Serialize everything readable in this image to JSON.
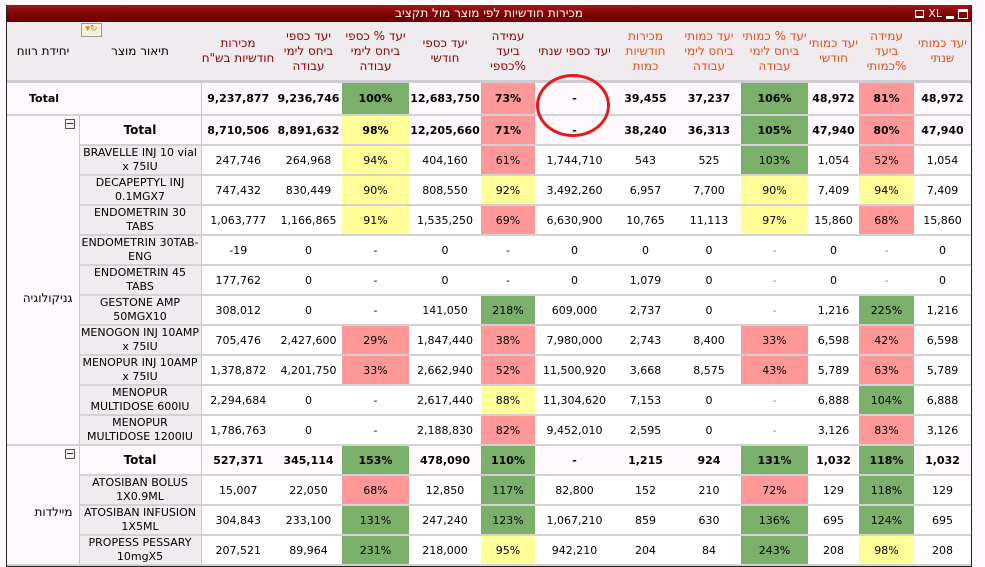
{
  "window": {
    "title": "מכירות חודשיות לפי מוצר מול תקציב",
    "icons": [
      "print-icon",
      "excel-export-icon",
      "minimize-icon",
      "maximize-icon"
    ],
    "excel_label": "XL"
  },
  "headers": {
    "profit_unit": "יחידת רווח",
    "product_desc": "תיאור מוצר",
    "monthly_sales_ils": "מכירות חודשיות בש\"ח",
    "money_target_workdays": "יעד כספי ביחס לימי עבודה",
    "money_target_pct_workdays": "יעד % כספי ביחס לימי עבודה",
    "monthly_money_target": "יעד כספי חודשי",
    "money_target_achieve_pct": "עמידה ביעד %כספי",
    "annual_money_target": "יעד כספי שנתי",
    "monthly_sales_qty": "מכירות חודשיות כמות",
    "qty_target_workdays": "יעד כמותי ביחס לימי עבודה",
    "qty_target_pct_workdays": "יעד % כמותי ביחס לימי עבודה",
    "monthly_qty_target": "יעד כמותי חודשי",
    "qty_target_achieve_pct": "עמידה ביעד %כמותי",
    "annual_qty_target": "יעד כמותי שנתי"
  },
  "grand_total": {
    "label": "Total",
    "values": [
      "9,237,877",
      "9,236,746",
      "100%",
      "12,683,750",
      "73%",
      "-",
      "39,455",
      "37,237",
      "106%",
      "48,972",
      "81%",
      "48,972"
    ]
  },
  "groups": [
    {
      "name": "גניקולוגיה",
      "total": {
        "label": "Total",
        "values": [
          "8,710,506",
          "8,891,632",
          "98%",
          "12,205,660",
          "71%",
          "-",
          "38,240",
          "36,313",
          "105%",
          "47,940",
          "80%",
          "47,940"
        ]
      },
      "rows": [
        {
          "product": "BRAVELLE INJ 10 vial x 75IU",
          "values": [
            "247,746",
            "264,968",
            "94%",
            "404,160",
            "61%",
            "1,744,710",
            "543",
            "525",
            "103%",
            "1,054",
            "52%",
            "1,054"
          ]
        },
        {
          "product": "DECAPEPTYL INJ 0.1MGX7",
          "values": [
            "747,432",
            "830,449",
            "90%",
            "808,550",
            "92%",
            "3,492,260",
            "6,957",
            "7,700",
            "90%",
            "7,409",
            "94%",
            "7,409"
          ]
        },
        {
          "product": "ENDOMETRIN 30 TABS",
          "values": [
            "1,063,777",
            "1,166,865",
            "91%",
            "1,535,250",
            "69%",
            "6,630,900",
            "10,765",
            "11,113",
            "97%",
            "15,860",
            "68%",
            "15,860"
          ]
        },
        {
          "product": "ENDOMETRIN 30TAB-ENG",
          "values": [
            "-19",
            "0",
            "-",
            "0",
            "-",
            "0",
            "0",
            "0",
            "-",
            "0",
            "-",
            "0"
          ]
        },
        {
          "product": "ENDOMETRIN 45 TABS",
          "values": [
            "177,762",
            "0",
            "-",
            "0",
            "-",
            "0",
            "1,079",
            "0",
            "-",
            "0",
            "-",
            "0"
          ]
        },
        {
          "product": "GESTONE AMP 50MGX10",
          "values": [
            "308,012",
            "0",
            "-",
            "141,050",
            "218%",
            "609,000",
            "2,737",
            "0",
            "-",
            "1,216",
            "225%",
            "1,216"
          ]
        },
        {
          "product": "MENOGON INJ 10AMP x 75IU",
          "values": [
            "705,476",
            "2,427,600",
            "29%",
            "1,847,440",
            "38%",
            "7,980,000",
            "2,743",
            "8,400",
            "33%",
            "6,598",
            "42%",
            "6,598"
          ]
        },
        {
          "product": "MENOPUR INJ 10AMP x 75IU",
          "values": [
            "1,378,872",
            "4,201,750",
            "33%",
            "2,662,940",
            "52%",
            "11,500,920",
            "3,668",
            "8,575",
            "43%",
            "5,789",
            "63%",
            "5,789"
          ]
        },
        {
          "product": "MENOPUR MULTIDOSE 600IU",
          "values": [
            "2,294,684",
            "0",
            "-",
            "2,617,440",
            "88%",
            "11,304,620",
            "7,153",
            "0",
            "-",
            "6,888",
            "104%",
            "6,888"
          ]
        },
        {
          "product": "MENOPUR MULTIDOSE 1200IU",
          "values": [
            "1,786,763",
            "0",
            "-",
            "2,188,830",
            "82%",
            "9,452,010",
            "2,595",
            "0",
            "-",
            "3,126",
            "83%",
            "3,126"
          ]
        }
      ]
    },
    {
      "name": "מיילדות",
      "total": {
        "label": "Total",
        "values": [
          "527,371",
          "345,114",
          "153%",
          "478,090",
          "110%",
          "-",
          "1,215",
          "924",
          "131%",
          "1,032",
          "118%",
          "1,032"
        ]
      },
      "rows": [
        {
          "product": "ATOSIBAN BOLUS 1X0.9ML",
          "values": [
            "15,007",
            "22,050",
            "68%",
            "12,850",
            "117%",
            "82,800",
            "152",
            "210",
            "72%",
            "129",
            "118%",
            "129"
          ]
        },
        {
          "product": "ATOSIBAN INFUSION 1X5ML",
          "values": [
            "304,843",
            "233,100",
            "131%",
            "247,240",
            "123%",
            "1,067,210",
            "859",
            "630",
            "136%",
            "695",
            "124%",
            "695"
          ]
        },
        {
          "product": "PROPESS PESSARY 10mgX5",
          "values": [
            "207,521",
            "89,964",
            "231%",
            "218,000",
            "95%",
            "942,210",
            "204",
            "84",
            "243%",
            "208",
            "98%",
            "208"
          ]
        }
      ]
    }
  ],
  "status_colors": {
    "good": "#7bb06a",
    "warning": "#ffff99",
    "bad": "#ff9999",
    "header_dark": "#8b0000",
    "header_orange": "#e4501b",
    "annotation_circle": "#e21a1a"
  }
}
